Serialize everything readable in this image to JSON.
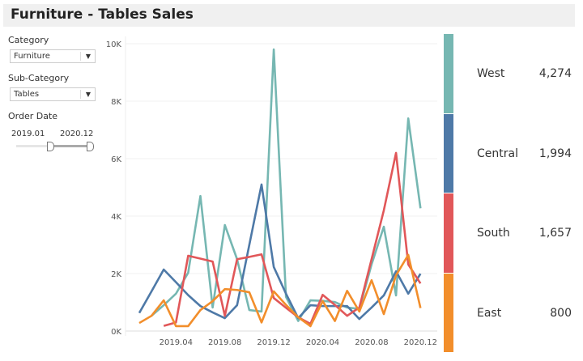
{
  "title": "Furniture - Tables Sales",
  "filters": {
    "category": {
      "label": "Category",
      "value": "Furniture"
    },
    "sub_category": {
      "label": "Sub-Category",
      "value": "Tables"
    },
    "order_date": {
      "label": "Order Date",
      "start": "2019.01",
      "end": "2020.12"
    }
  },
  "chart_data": {
    "type": "line",
    "title": "",
    "xlabel": "",
    "ylabel": "",
    "ylim": [
      0,
      10000
    ],
    "y_ticks": [
      0,
      2000,
      4000,
      6000,
      8000,
      10000
    ],
    "y_tick_labels": [
      "0K",
      "2K",
      "4K",
      "6K",
      "8K",
      "10K"
    ],
    "x": [
      "2019.01",
      "2019.02",
      "2019.03",
      "2019.04",
      "2019.05",
      "2019.06",
      "2019.07",
      "2019.08",
      "2019.09",
      "2019.10",
      "2019.11",
      "2019.12",
      "2020.01",
      "2020.02",
      "2020.03",
      "2020.04",
      "2020.05",
      "2020.06",
      "2020.07",
      "2020.08",
      "2020.09",
      "2020.10",
      "2020.11",
      "2020.12"
    ],
    "x_tick_labels": [
      "2019.04",
      "2019.08",
      "2019.12",
      "2020.04",
      "2020.08",
      "2020.12"
    ],
    "grid": true,
    "legend": "right",
    "series": [
      {
        "name": "West",
        "color": "#76b7b2",
        "label_value": "4,274",
        "values": [
          null,
          530,
          900,
          1300,
          2030,
          4700,
          820,
          3690,
          2500,
          730,
          680,
          9800,
          1190,
          350,
          1070,
          1050,
          1010,
          820,
          770,
          2320,
          3630,
          1240,
          7400,
          4274
        ]
      },
      {
        "name": "Central",
        "color": "#4e79a7",
        "label_value": "1,994",
        "values": [
          630,
          1380,
          2140,
          1700,
          1250,
          870,
          650,
          450,
          900,
          3000,
          5100,
          2230,
          1300,
          450,
          900,
          870,
          870,
          870,
          420,
          820,
          1240,
          2080,
          1300,
          1994
        ]
      },
      {
        "name": "South",
        "color": "#e15759",
        "label_value": "1,657",
        "values": [
          null,
          null,
          180,
          300,
          2620,
          2520,
          2420,
          530,
          2500,
          2580,
          2670,
          1150,
          810,
          480,
          250,
          1260,
          910,
          530,
          820,
          2500,
          4200,
          6200,
          2320,
          1657
        ]
      },
      {
        "name": "East",
        "color": "#f28e2b",
        "label_value": "800",
        "values": [
          280,
          530,
          1070,
          170,
          170,
          730,
          1040,
          1460,
          1430,
          1350,
          300,
          1380,
          910,
          480,
          170,
          1040,
          350,
          1400,
          680,
          1770,
          590,
          1940,
          2650,
          800
        ]
      }
    ]
  }
}
